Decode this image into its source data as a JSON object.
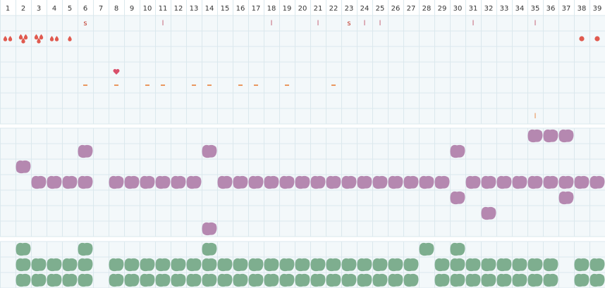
{
  "days": [
    1,
    2,
    3,
    4,
    5,
    6,
    7,
    8,
    9,
    10,
    11,
    12,
    13,
    14,
    15,
    16,
    17,
    18,
    19,
    20,
    21,
    22,
    23,
    24,
    25,
    26,
    27,
    28,
    29,
    30,
    31,
    32,
    33,
    34,
    35,
    36,
    37,
    38,
    39
  ],
  "notes": [
    {
      "day": 6,
      "text": "s"
    },
    {
      "day": 11,
      "text": "l"
    },
    {
      "day": 18,
      "text": "l"
    },
    {
      "day": 21,
      "text": "l"
    },
    {
      "day": 23,
      "text": "s"
    },
    {
      "day": 24,
      "text": "l"
    },
    {
      "day": 25,
      "text": "l"
    },
    {
      "day": 31,
      "text": "l"
    },
    {
      "day": 35,
      "text": "l"
    }
  ],
  "bleeding": [
    {
      "day": 1,
      "drops": 2
    },
    {
      "day": 2,
      "drops": 3
    },
    {
      "day": 3,
      "drops": 3
    },
    {
      "day": 4,
      "drops": 2
    },
    {
      "day": 5,
      "drops": 1
    }
  ],
  "spotting": [
    38,
    39
  ],
  "heart_days": [
    8
  ],
  "dash_days": [
    6,
    8,
    10,
    11,
    13,
    14,
    16,
    17,
    19,
    22
  ],
  "bottom_notes": [
    {
      "day": 35,
      "text": "l"
    }
  ],
  "purple_rows": [
    [
      35,
      36,
      37
    ],
    [
      6,
      14,
      30
    ],
    [
      2
    ],
    [
      3,
      4,
      5,
      6,
      8,
      9,
      10,
      11,
      12,
      13,
      15,
      16,
      17,
      18,
      19,
      20,
      21,
      22,
      23,
      24,
      25,
      26,
      27,
      28,
      29,
      31,
      32,
      33,
      34,
      35,
      36,
      37,
      38,
      39
    ],
    [
      30,
      37
    ],
    [
      32
    ],
    [
      14
    ]
  ],
  "green_rows": [
    [
      2,
      6,
      14,
      28,
      30
    ],
    [
      2,
      3,
      4,
      5,
      6,
      8,
      9,
      10,
      11,
      12,
      13,
      14,
      15,
      16,
      17,
      18,
      19,
      20,
      21,
      22,
      23,
      24,
      25,
      26,
      27,
      29,
      30,
      31,
      32,
      33,
      34,
      35,
      36,
      38,
      39
    ],
    [
      2,
      3,
      4,
      5,
      6,
      8,
      9,
      10,
      11,
      12,
      13,
      14,
      15,
      16,
      17,
      18,
      19,
      20,
      21,
      22,
      23,
      24,
      25,
      26,
      27,
      29,
      30,
      31,
      32,
      33,
      34,
      35,
      36,
      38,
      39
    ]
  ]
}
